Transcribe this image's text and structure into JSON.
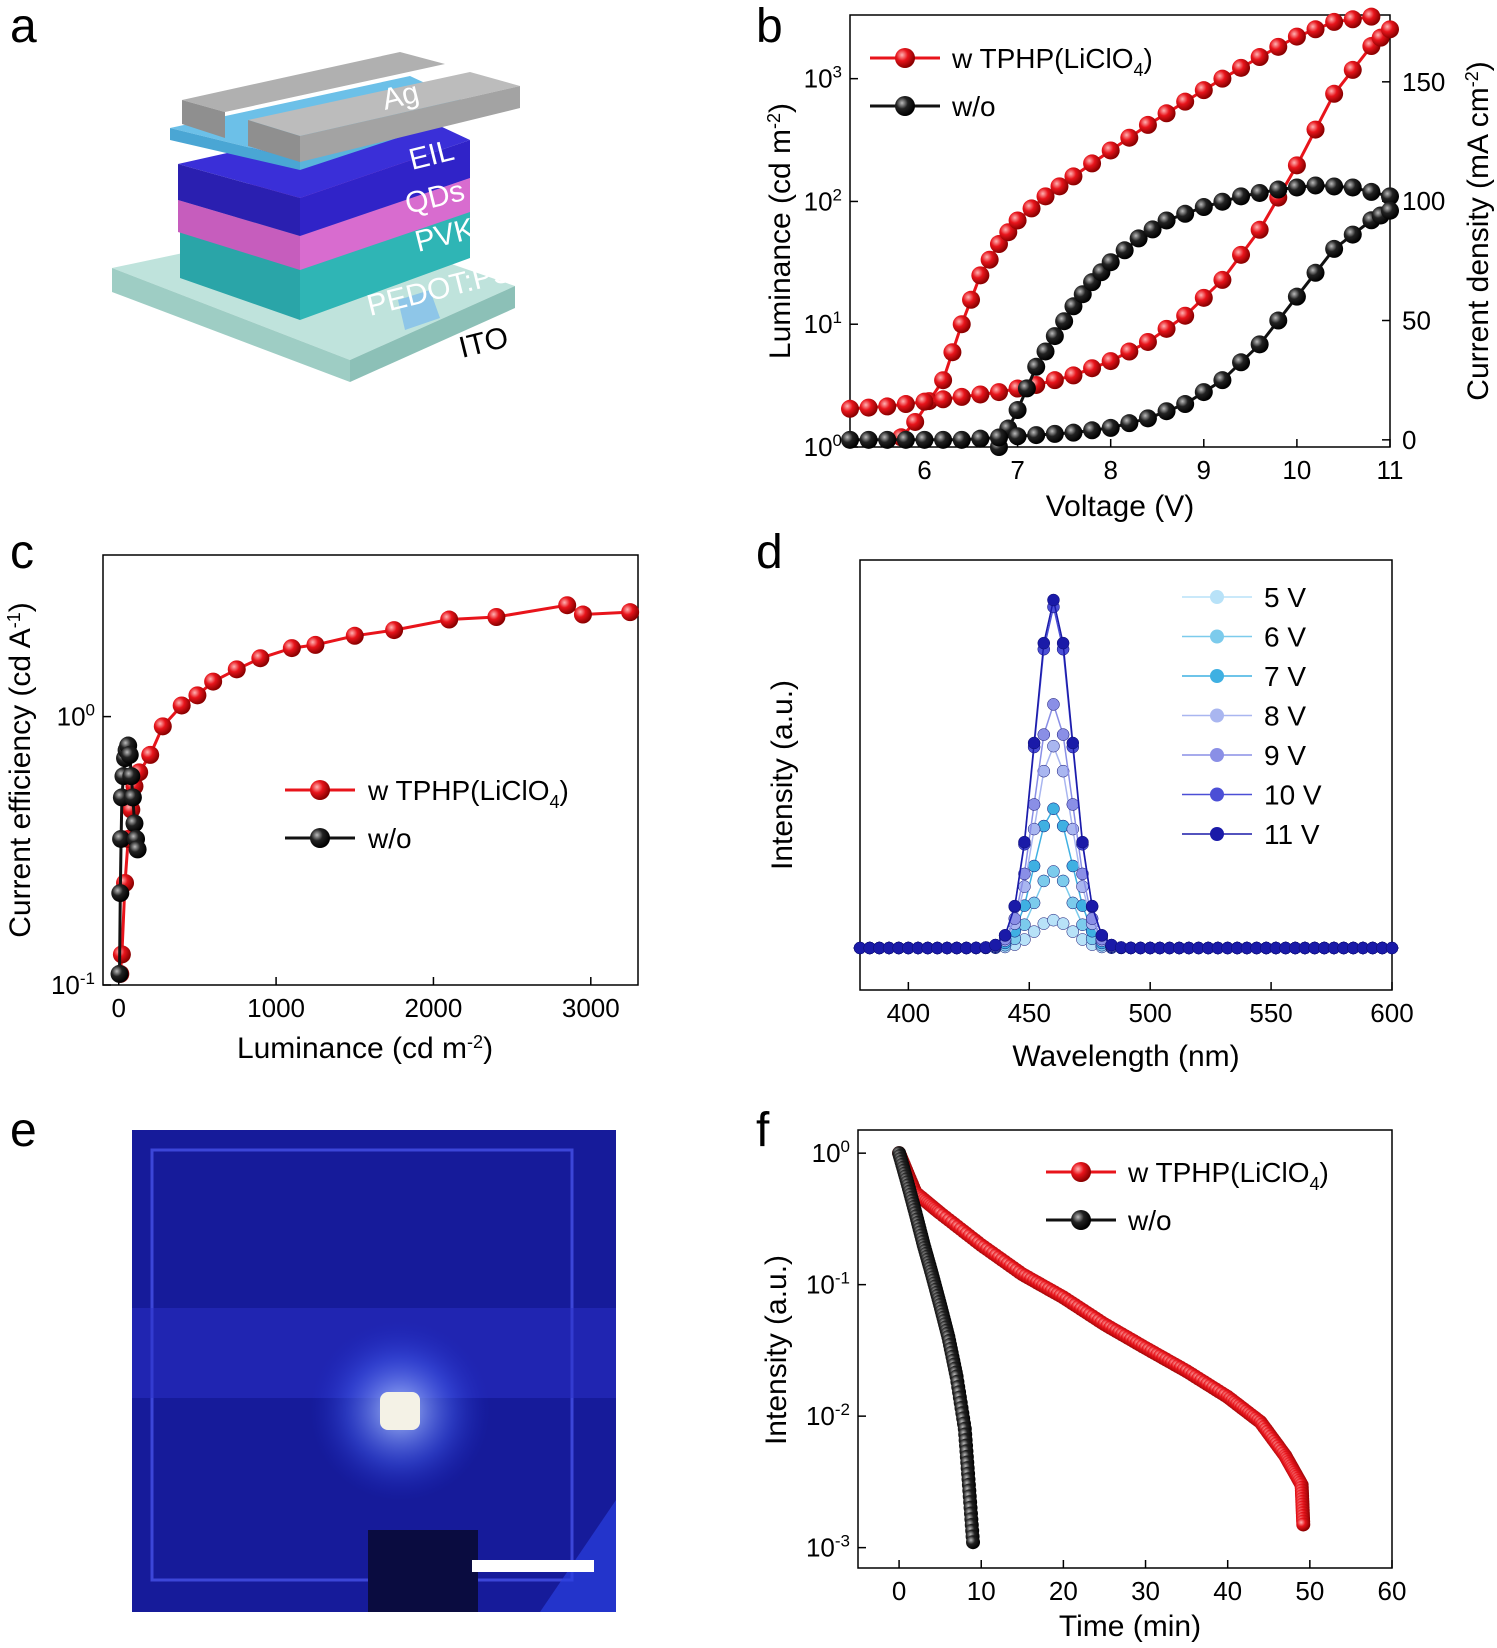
{
  "panels": {
    "a": {
      "label": "a",
      "layers": [
        "Ag",
        "EIL",
        "QDs",
        "PVK",
        "PEDOT:PSS",
        "ITO"
      ]
    },
    "b": {
      "label": "b",
      "xlabel": "Voltage (V)",
      "ylabel_left": "Luminance (cd m",
      "ylabel_left_sup": "-2",
      "ylabel_left_tail": ")",
      "ylabel_right": "Current density (mA cm",
      "ylabel_right_sup": "-2",
      "ylabel_right_tail": ")",
      "x_ticks": [
        "6",
        "7",
        "8",
        "9",
        "10",
        "11"
      ],
      "y_ticks_left": [
        {
          "base": "10",
          "exp": "0"
        },
        {
          "base": "10",
          "exp": "1"
        },
        {
          "base": "10",
          "exp": "2"
        },
        {
          "base": "10",
          "exp": "3"
        }
      ],
      "y_ticks_right": [
        "0",
        "50",
        "100",
        "150"
      ],
      "legend": [
        {
          "text": "w TPHP(LiClO",
          "sub": "4",
          "tail": ")"
        },
        {
          "text": "w/o",
          "sub": "",
          "tail": ""
        }
      ]
    },
    "c": {
      "label": "c",
      "xlabel": "Luminance (cd m",
      "xlabel_sup": "-2",
      "xlabel_tail": ")",
      "ylabel": "Current efficiency (cd A",
      "ylabel_sup": "-1",
      "ylabel_tail": ")",
      "x_ticks": [
        "0",
        "1000",
        "2000",
        "3000"
      ],
      "y_ticks": [
        {
          "base": "10",
          "exp": "-1"
        },
        {
          "base": "10",
          "exp": "0"
        }
      ],
      "legend": [
        {
          "text": "w TPHP(LiClO",
          "sub": "4",
          "tail": ")"
        },
        {
          "text": "w/o",
          "sub": "",
          "tail": ""
        }
      ]
    },
    "d": {
      "label": "d",
      "xlabel": "Wavelength (nm)",
      "ylabel": "Intensity (a.u.)",
      "x_ticks": [
        "400",
        "450",
        "500",
        "550",
        "600"
      ],
      "legend": [
        "5 V",
        "6 V",
        "7 V",
        "8 V",
        "9 V",
        "10 V",
        "11 V"
      ]
    },
    "e": {
      "label": "e"
    },
    "f": {
      "label": "f",
      "xlabel": "Time (min)",
      "ylabel": "Intensity (a.u.)",
      "x_ticks": [
        "0",
        "10",
        "20",
        "30",
        "40",
        "50",
        "60"
      ],
      "y_ticks": [
        {
          "base": "10",
          "exp": "0"
        },
        {
          "base": "10",
          "exp": "-1"
        },
        {
          "base": "10",
          "exp": "-2"
        },
        {
          "base": "10",
          "exp": "-3"
        }
      ],
      "legend": [
        {
          "text": "w TPHP(LiClO",
          "sub": "4",
          "tail": ")"
        },
        {
          "text": "w/o",
          "sub": "",
          "tail": ""
        }
      ]
    }
  },
  "colors": {
    "red": "#e8141b",
    "black": "#111111",
    "blue_dark": "#1a1aa8"
  },
  "chart_data": [
    {
      "panel": "b",
      "type": "line",
      "xlim": [
        5.2,
        11
      ],
      "ylim_left_log": [
        1,
        3300
      ],
      "ylim_right": [
        -3,
        178
      ],
      "series": [
        {
          "name": "w TPHP(LiClO4)",
          "axis": "left",
          "x": [
            5.6,
            5.9,
            6.2,
            6.4,
            6.6,
            6.8,
            7.0,
            7.3,
            7.6,
            8.0,
            8.4,
            8.8,
            9.2,
            9.6,
            10.0,
            10.4,
            10.8
          ],
          "y": [
            0.9,
            1.6,
            3.5,
            10,
            25,
            45,
            70,
            110,
            160,
            260,
            420,
            650,
            1000,
            1500,
            2200,
            2900,
            3200
          ]
        },
        {
          "name": "w TPHP(LiClO4)",
          "axis": "right",
          "x": [
            5.2,
            5.6,
            6.0,
            6.4,
            6.8,
            7.2,
            7.6,
            8.0,
            8.4,
            8.8,
            9.2,
            9.6,
            10.0,
            10.4,
            10.8,
            11.0
          ],
          "y": [
            13,
            14,
            16,
            18,
            20,
            23,
            27,
            33,
            41,
            52,
            67,
            88,
            115,
            145,
            165,
            172
          ]
        },
        {
          "name": "w/o",
          "axis": "left",
          "x": [
            6.8,
            7.0,
            7.2,
            7.4,
            7.6,
            7.8,
            8.0,
            8.3,
            8.6,
            9.0,
            9.4,
            9.8,
            10.2,
            10.6,
            11.0
          ],
          "y": [
            1.0,
            2.0,
            4.5,
            8,
            14,
            22,
            32,
            50,
            70,
            90,
            110,
            125,
            135,
            130,
            110
          ]
        },
        {
          "name": "w/o",
          "axis": "right",
          "x": [
            5.2,
            5.6,
            6.0,
            6.4,
            6.8,
            7.2,
            7.6,
            8.0,
            8.4,
            8.8,
            9.2,
            9.6,
            10.0,
            10.4,
            10.8,
            11.0
          ],
          "y": [
            0,
            0,
            0,
            0,
            1,
            2,
            3,
            5,
            9,
            15,
            25,
            40,
            60,
            80,
            92,
            96
          ]
        }
      ]
    },
    {
      "panel": "c",
      "type": "scatter",
      "xlim": [
        -100,
        3300
      ],
      "ylim_log": [
        0.1,
        4
      ],
      "series": [
        {
          "name": "w TPHP(LiClO4)",
          "x": [
            10,
            20,
            40,
            60,
            80,
            100,
            130,
            200,
            280,
            400,
            500,
            600,
            750,
            900,
            1100,
            1250,
            1500,
            1750,
            2100,
            2400,
            2850,
            2950,
            3250
          ],
          "y": [
            0.11,
            0.13,
            0.24,
            0.35,
            0.45,
            0.55,
            0.62,
            0.72,
            0.92,
            1.1,
            1.2,
            1.35,
            1.5,
            1.65,
            1.8,
            1.85,
            2.0,
            2.1,
            2.3,
            2.35,
            2.6,
            2.4,
            2.45
          ]
        },
        {
          "name": "w/o",
          "x": [
            5,
            10,
            15,
            20,
            30,
            40,
            50,
            60,
            70,
            80,
            90,
            100,
            110,
            120
          ],
          "y": [
            0.11,
            0.22,
            0.35,
            0.5,
            0.6,
            0.7,
            0.75,
            0.78,
            0.72,
            0.6,
            0.5,
            0.4,
            0.35,
            0.32
          ]
        }
      ]
    },
    {
      "panel": "d",
      "type": "line",
      "xlim": [
        380,
        600
      ],
      "peak_nm": 460,
      "series": [
        {
          "name": "5 V",
          "peak": 0.08
        },
        {
          "name": "6 V",
          "peak": 0.22
        },
        {
          "name": "7 V",
          "peak": 0.4
        },
        {
          "name": "8 V",
          "peak": 0.58
        },
        {
          "name": "9 V",
          "peak": 0.7
        },
        {
          "name": "10 V",
          "peak": 0.98
        },
        {
          "name": "11 V",
          "peak": 1.0
        }
      ]
    },
    {
      "panel": "f",
      "type": "scatter",
      "xlim": [
        -5,
        60
      ],
      "ylim_log": [
        0.0007,
        1.5
      ],
      "series": [
        {
          "name": "w TPHP(LiClO4)",
          "x": [
            0,
            2,
            5,
            10,
            15,
            20,
            25,
            30,
            35,
            40,
            44,
            47,
            49,
            49.2
          ],
          "y": [
            1.0,
            0.5,
            0.35,
            0.2,
            0.12,
            0.08,
            0.05,
            0.033,
            0.022,
            0.014,
            0.009,
            0.005,
            0.003,
            0.0015
          ]
        },
        {
          "name": "w/o",
          "x": [
            0,
            1,
            2,
            3,
            4,
            5,
            6,
            7,
            8,
            8.5,
            9
          ],
          "y": [
            1.0,
            0.6,
            0.35,
            0.2,
            0.12,
            0.07,
            0.04,
            0.02,
            0.008,
            0.003,
            0.0011
          ]
        }
      ]
    }
  ]
}
